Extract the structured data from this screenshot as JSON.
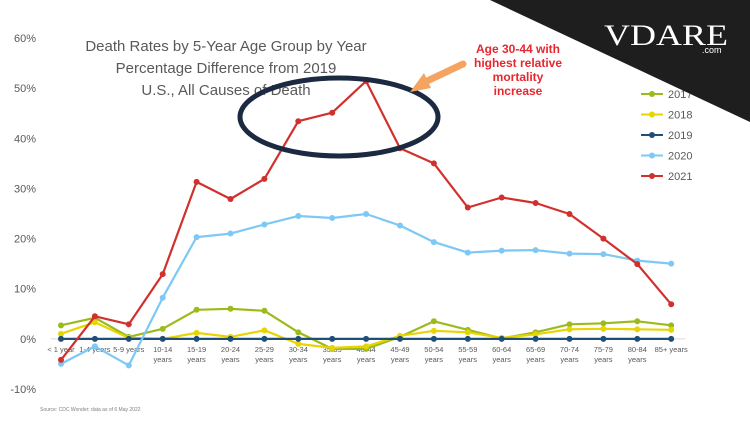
{
  "chart_data": {
    "type": "line",
    "title_lines": [
      "Death Rates by 5-Year Age Group by Year",
      "Percentage Difference from 2019",
      "U.S., All Causes of Death"
    ],
    "categories": [
      [
        "< 1 year"
      ],
      [
        "1-4 years"
      ],
      [
        "5-9 years"
      ],
      [
        "10-14",
        "years"
      ],
      [
        "15-19",
        "years"
      ],
      [
        "20-24",
        "years"
      ],
      [
        "25-29",
        "years"
      ],
      [
        "30-34",
        "years"
      ],
      [
        "35-39",
        "years"
      ],
      [
        "40-44",
        "years"
      ],
      [
        "45-49",
        "years"
      ],
      [
        "50-54",
        "years"
      ],
      [
        "55-59",
        "years"
      ],
      [
        "60-64",
        "years"
      ],
      [
        "65-69",
        "years"
      ],
      [
        "70-74",
        "years"
      ],
      [
        "75-79",
        "years"
      ],
      [
        "80-84",
        "years"
      ],
      [
        "85+ years"
      ]
    ],
    "y_ticks": [
      "-10%",
      "0%",
      "10%",
      "20%",
      "30%",
      "40%",
      "50%",
      "60%"
    ],
    "ylim": [
      -10,
      60
    ],
    "grid": false,
    "legend_position": "right",
    "series": [
      {
        "name": "2017",
        "color": "#9bbb1a",
        "values": [
          2.7,
          4.2,
          0.4,
          2.0,
          5.8,
          6.0,
          5.6,
          1.3,
          -2.0,
          -2.0,
          0.4,
          3.5,
          1.8,
          0.1,
          1.3,
          2.9,
          3.1,
          3.5,
          2.7
        ]
      },
      {
        "name": "2018",
        "color": "#e8d400",
        "values": [
          1.0,
          3.3,
          0.2,
          0.0,
          1.2,
          0.4,
          1.7,
          -1.0,
          -1.8,
          -1.5,
          0.6,
          1.6,
          1.3,
          0.2,
          0.9,
          1.9,
          2.0,
          1.9,
          1.8
        ]
      },
      {
        "name": "2019",
        "color": "#1f4e79",
        "values": [
          0,
          0,
          0,
          0,
          0,
          0,
          0,
          0,
          0,
          0,
          0,
          0,
          0,
          0,
          0,
          0,
          0,
          0,
          0
        ]
      },
      {
        "name": "2020",
        "color": "#7ec8f5",
        "values": [
          -5.0,
          -1.5,
          -5.3,
          8.2,
          20.3,
          21.0,
          22.8,
          24.5,
          24.1,
          24.9,
          22.6,
          19.3,
          17.2,
          17.6,
          17.7,
          17.0,
          16.9,
          15.6,
          15.0
        ]
      },
      {
        "name": "2021",
        "color": "#d0312d",
        "values": [
          -4.2,
          4.5,
          2.9,
          12.9,
          31.3,
          27.9,
          31.9,
          43.4,
          45.1,
          51.4,
          38.0,
          35.0,
          26.2,
          28.2,
          27.1,
          24.9,
          20.0,
          14.9,
          6.9
        ]
      }
    ],
    "annotation": {
      "lines": [
        "Age 30-44 with",
        "highest relative",
        "mortality",
        "increase"
      ],
      "color": "#e8262d",
      "arrow_color": "#f4a460",
      "ellipse_color": "#1b2a41"
    },
    "source": "Source: CDC Wonder; data as of 6 May 2022"
  },
  "logo": {
    "text": "VDARE",
    "sub": ".com",
    "bg_color": "#1e1e1e"
  }
}
